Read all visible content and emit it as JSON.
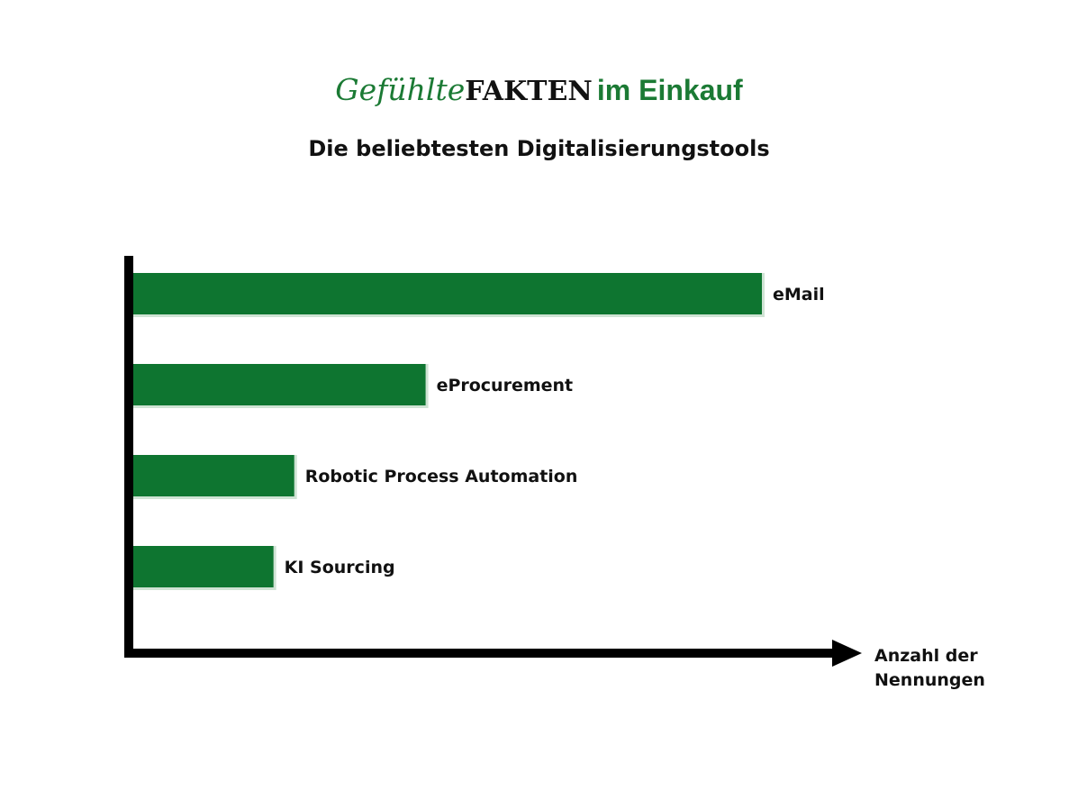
{
  "header": {
    "brand_script": "Gefühlte",
    "brand_strong": "FAKTEN",
    "brand_tail": "im Einkauf"
  },
  "chart_data": {
    "type": "bar",
    "orientation": "horizontal",
    "title": "Die beliebtesten Digitalisierungstools",
    "categories": [
      "eMail",
      "eProcurement",
      "Robotic Process Automation",
      "KI Sourcing"
    ],
    "values": [
      100,
      46.5,
      25.6,
      22.3
    ],
    "xlabel_lines": [
      "Anzahl der",
      "Nennungen"
    ],
    "ylabel": "",
    "xlim": [
      0,
      100
    ],
    "grid": false,
    "legend": "none",
    "bar_color": "#0e7530",
    "bar_shadow_color": "#cfe3d4",
    "axis_color": "#000000"
  }
}
